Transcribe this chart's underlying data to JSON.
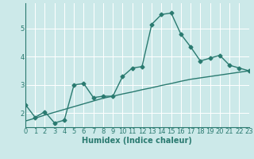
{
  "title": "",
  "xlabel": "Humidex (Indice chaleur)",
  "ylabel": "",
  "background_color": "#cce9e9",
  "line_color": "#2a7a70",
  "grid_color": "#ffffff",
  "x_values": [
    0,
    1,
    2,
    3,
    4,
    5,
    6,
    7,
    8,
    9,
    10,
    11,
    12,
    13,
    14,
    15,
    16,
    17,
    18,
    19,
    20,
    21,
    22,
    23
  ],
  "y_main": [
    2.3,
    1.85,
    2.05,
    1.65,
    1.75,
    3.0,
    3.05,
    2.55,
    2.6,
    2.6,
    3.3,
    3.6,
    3.65,
    5.15,
    5.5,
    5.55,
    4.8,
    4.35,
    3.85,
    3.95,
    4.05,
    3.7,
    3.6,
    3.5
  ],
  "y_trend": [
    1.72,
    1.82,
    1.93,
    2.03,
    2.13,
    2.23,
    2.33,
    2.43,
    2.53,
    2.6,
    2.68,
    2.75,
    2.83,
    2.9,
    2.98,
    3.05,
    3.13,
    3.2,
    3.25,
    3.3,
    3.35,
    3.4,
    3.45,
    3.5
  ],
  "ylim": [
    1.5,
    5.9
  ],
  "xlim": [
    0,
    23
  ],
  "yticks": [
    2,
    3,
    4,
    5
  ],
  "xticks": [
    0,
    1,
    2,
    3,
    4,
    5,
    6,
    7,
    8,
    9,
    10,
    11,
    12,
    13,
    14,
    15,
    16,
    17,
    18,
    19,
    20,
    21,
    22,
    23
  ],
  "marker": "D",
  "marker_size": 2.5,
  "linewidth": 1.0,
  "tick_fontsize": 6.0,
  "label_fontsize": 7.0
}
